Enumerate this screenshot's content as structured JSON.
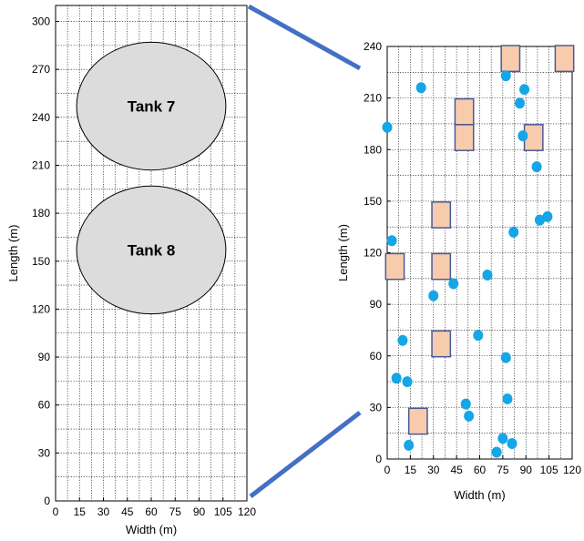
{
  "chart_data": [
    {
      "type": "layout",
      "xlabel": "Width (m)",
      "ylabel": "Length (m)",
      "xlim": [
        0,
        120
      ],
      "ylim": [
        0,
        310
      ],
      "xticks": [
        0,
        15,
        30,
        45,
        60,
        75,
        90,
        105,
        120
      ],
      "yticks": [
        0,
        30,
        60,
        90,
        120,
        150,
        180,
        210,
        240,
        270,
        300
      ],
      "grid": true,
      "tanks": [
        {
          "label": "Tank 7",
          "cx": 60,
          "cy": 247,
          "r": 40,
          "fill": "#dcdcdc"
        },
        {
          "label": "Tank 8",
          "cx": 60,
          "cy": 157,
          "r": 40,
          "fill": "#dcdcdc"
        }
      ]
    },
    {
      "type": "scatter",
      "xlabel": "Width (m)",
      "ylabel": "Length (m)",
      "xlim": [
        0,
        120
      ],
      "ylim": [
        0,
        240
      ],
      "xticks": [
        0,
        15,
        30,
        45,
        60,
        75,
        90,
        105,
        120
      ],
      "yticks": [
        0,
        30,
        60,
        90,
        120,
        150,
        180,
        210,
        240
      ],
      "grid": true,
      "squares": [
        {
          "x": 50,
          "y": 202
        },
        {
          "x": 50,
          "y": 187
        },
        {
          "x": 80,
          "y": 233
        },
        {
          "x": 115,
          "y": 233
        },
        {
          "x": 95,
          "y": 187
        },
        {
          "x": 35,
          "y": 142
        },
        {
          "x": 5,
          "y": 112
        },
        {
          "x": 35,
          "y": 112
        },
        {
          "x": 35,
          "y": 67
        },
        {
          "x": 20,
          "y": 22
        }
      ],
      "points": [
        {
          "x": 22,
          "y": 216
        },
        {
          "x": 77,
          "y": 223
        },
        {
          "x": 89,
          "y": 215
        },
        {
          "x": 86,
          "y": 207
        },
        {
          "x": 0,
          "y": 193
        },
        {
          "x": 88,
          "y": 188
        },
        {
          "x": 97,
          "y": 170
        },
        {
          "x": 104,
          "y": 141
        },
        {
          "x": 99,
          "y": 139
        },
        {
          "x": 82,
          "y": 132
        },
        {
          "x": 3,
          "y": 127
        },
        {
          "x": 65,
          "y": 107
        },
        {
          "x": 43,
          "y": 102
        },
        {
          "x": 30,
          "y": 95
        },
        {
          "x": 59,
          "y": 72
        },
        {
          "x": 10,
          "y": 69
        },
        {
          "x": 77,
          "y": 59
        },
        {
          "x": 6,
          "y": 47
        },
        {
          "x": 13,
          "y": 45
        },
        {
          "x": 78,
          "y": 35
        },
        {
          "x": 51,
          "y": 32
        },
        {
          "x": 53,
          "y": 25
        },
        {
          "x": 75,
          "y": 12
        },
        {
          "x": 81,
          "y": 9
        },
        {
          "x": 14,
          "y": 8
        },
        {
          "x": 71,
          "y": 4
        }
      ],
      "colors": {
        "point": "#14a6e6",
        "square_fill": "#f8cbad",
        "square_stroke": "#4a5a96",
        "connector": "#4470c4"
      }
    }
  ]
}
